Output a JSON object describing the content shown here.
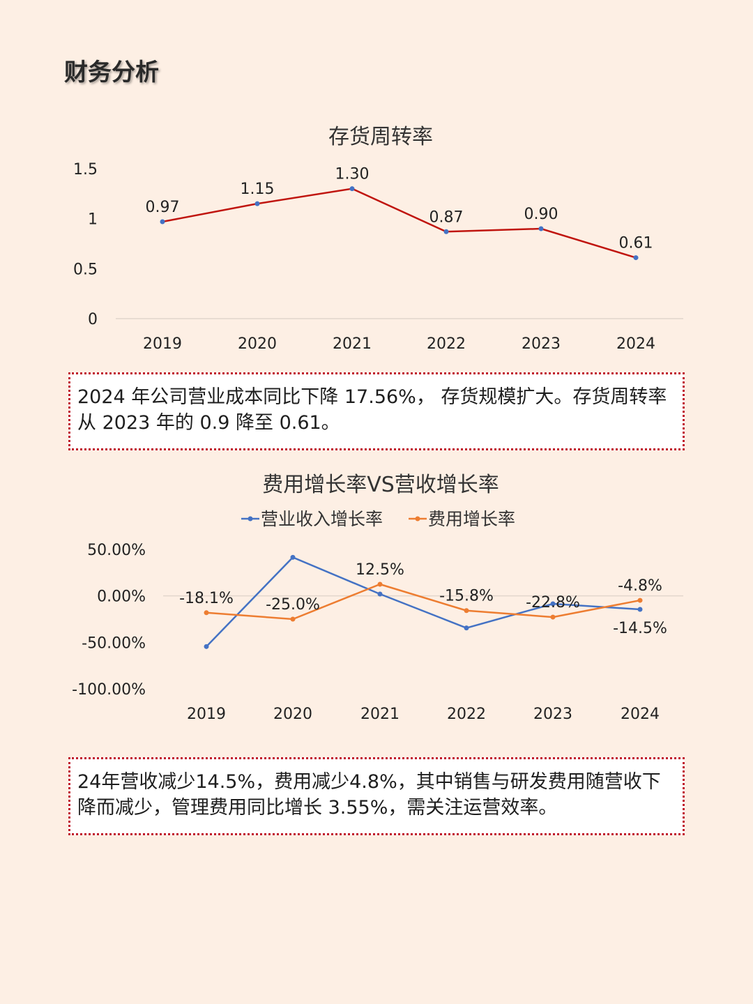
{
  "page": {
    "title": "财务分析"
  },
  "colors": {
    "background": "#fdefe4",
    "line1": "#c0150f",
    "marker1": "#4472c4",
    "revenue": "#4472c4",
    "expense": "#ed7d31",
    "border": "#c0182a"
  },
  "chart_data": [
    {
      "type": "line",
      "title": "存货周转率",
      "categories": [
        "2019",
        "2020",
        "2021",
        "2022",
        "2023",
        "2024"
      ],
      "values": [
        0.97,
        1.15,
        1.3,
        0.87,
        0.9,
        0.61
      ],
      "labels": [
        "0.97",
        "1.15",
        "1.30",
        "0.87",
        "0.90",
        "0.61"
      ],
      "yticks": [
        "1.5",
        "1",
        "0.5",
        "0"
      ],
      "ylim": [
        0,
        1.5
      ],
      "grid": false
    },
    {
      "type": "line",
      "title": "费用增长率VS营收增长率",
      "categories": [
        "2019",
        "2020",
        "2021",
        "2022",
        "2023",
        "2024"
      ],
      "legend": "top",
      "yticks": [
        "50.00%",
        "0.00%",
        "-50.00%",
        "-100.00%"
      ],
      "ylim": [
        -100,
        50
      ],
      "series": [
        {
          "name": "营业收入增长率",
          "values": [
            -54.5,
            41.5,
            2.0,
            -34.5,
            -8.5,
            -14.5
          ]
        },
        {
          "name": "费用增长率",
          "values": [
            -18.1,
            -25.0,
            12.5,
            -15.8,
            -22.8,
            -4.8
          ],
          "labels": [
            "-18.1%",
            "-25.0%",
            "12.5%",
            "-15.8%",
            "-22.8%",
            "-4.8%"
          ]
        }
      ],
      "extra_label": "-14.5%"
    }
  ],
  "notes": {
    "note1": "2024 年公司营业成本同比下降 17.56%， 存货规模扩大。存货周转率从 2023 年的 0.9 降至 0.61。",
    "note2": "24年营收减少14.5%，费用减少4.8%，其中销售与研发费用随营收下降而减少，管理费用同比增长 3.55%，需关注运营效率。"
  }
}
